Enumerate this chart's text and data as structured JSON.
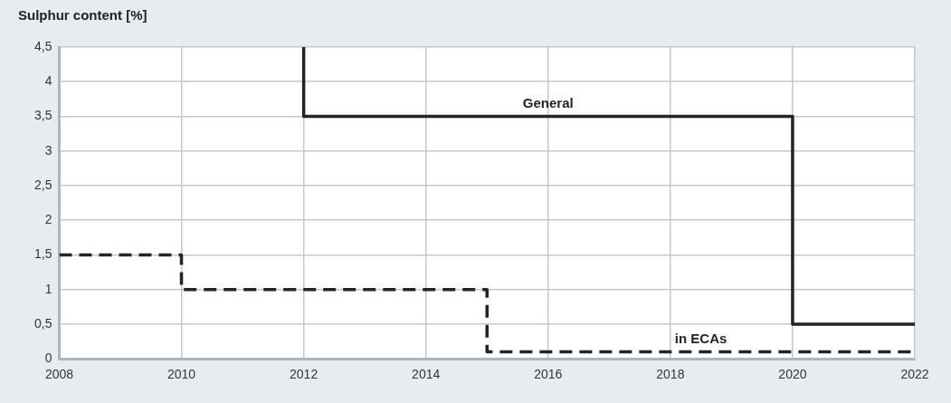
{
  "chart_data": {
    "type": "step",
    "ylabel": "Sulphur content [%]",
    "xlim": [
      2008,
      2022
    ],
    "xticks": [
      2008,
      2010,
      2012,
      2014,
      2016,
      2018,
      2020,
      2022
    ],
    "ylim": [
      0,
      4.5
    ],
    "yticks": [
      0,
      {
        "value": 0.5,
        "label": "0,5"
      },
      1,
      {
        "value": 1.5,
        "label": "1,5"
      },
      2,
      {
        "value": 2.5,
        "label": "2,5"
      },
      3,
      {
        "value": 3.5,
        "label": "3,5"
      },
      4,
      {
        "value": 4.5,
        "label": "4,5"
      }
    ],
    "grid": true,
    "legend": false,
    "series": [
      {
        "name": "General",
        "color": "#1e262c",
        "line_style": "solid",
        "x": [
          2012,
          2012,
          2020,
          2022
        ],
        "values": [
          4.5,
          3.5,
          0.5,
          0.5
        ]
      },
      {
        "name": "in ECAs",
        "color": "#1e262c",
        "line_style": "dashed",
        "x": [
          2008,
          2010,
          2015,
          2022
        ],
        "values": [
          1.5,
          1,
          0.1,
          0.1
        ]
      }
    ]
  }
}
